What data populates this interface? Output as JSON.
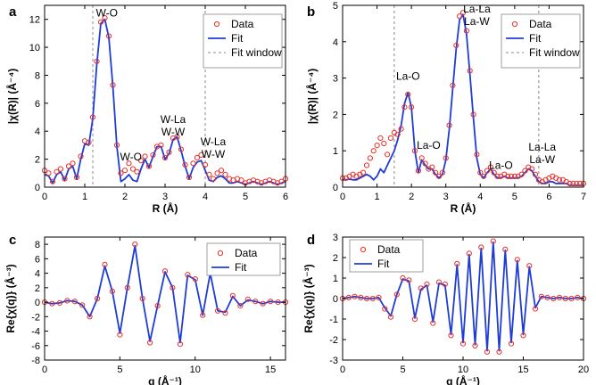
{
  "chart_data": [
    {
      "panel": "a",
      "type": "line",
      "xlabel": "R (Å)",
      "ylabel": "|χ(R)| (Å⁻⁴)",
      "xlim": [
        0,
        6
      ],
      "ylim": [
        0,
        13
      ],
      "xticks": [
        0,
        1,
        2,
        3,
        4,
        5,
        6
      ],
      "yticks": [
        0,
        2,
        4,
        6,
        8,
        10,
        12
      ],
      "legend": {
        "position": "top-right",
        "entries": [
          "Data",
          "Fit",
          "Fit window"
        ]
      },
      "fit_window": [
        1.2,
        4.0
      ],
      "annotations": [
        {
          "lines": [
            "W-O"
          ],
          "x": 1.55,
          "y": 12.2
        },
        {
          "lines": [
            "W-O"
          ],
          "x": 2.15,
          "y": 1.9
        },
        {
          "lines": [
            "W-La",
            "W-W"
          ],
          "x": 3.2,
          "y": 4.6
        },
        {
          "lines": [
            "W-La",
            "W-W"
          ],
          "x": 4.2,
          "y": 3.0
        }
      ],
      "series": [
        {
          "name": "Data",
          "style": "markers",
          "x": [
            0,
            0.1,
            0.2,
            0.3,
            0.4,
            0.5,
            0.6,
            0.7,
            0.8,
            0.9,
            1.0,
            1.1,
            1.2,
            1.3,
            1.4,
            1.5,
            1.6,
            1.7,
            1.8,
            1.9,
            2.0,
            2.1,
            2.2,
            2.3,
            2.4,
            2.5,
            2.6,
            2.7,
            2.8,
            2.9,
            3.0,
            3.1,
            3.2,
            3.3,
            3.4,
            3.5,
            3.6,
            3.7,
            3.8,
            3.9,
            4.0,
            4.1,
            4.2,
            4.3,
            4.4,
            4.5,
            4.6,
            4.7,
            4.8,
            4.9,
            5.0,
            5.1,
            5.2,
            5.3,
            5.4,
            5.5,
            5.6,
            5.7,
            5.8,
            5.9,
            6.0
          ],
          "y": [
            1.2,
            1.0,
            0.4,
            1.1,
            1.3,
            0.6,
            1.5,
            1.7,
            0.7,
            2.2,
            3.3,
            3.2,
            5.0,
            9.0,
            11.8,
            12.1,
            10.8,
            7.3,
            3.0,
            1.0,
            1.2,
            1.7,
            1.3,
            1.1,
            1.9,
            2.2,
            1.5,
            2.3,
            2.9,
            3.0,
            2.1,
            2.5,
            3.5,
            3.6,
            2.7,
            1.6,
            0.7,
            1.7,
            2.1,
            2.3,
            1.6,
            0.9,
            0.6,
            1.0,
            1.2,
            0.9,
            0.6,
            0.5,
            0.6,
            0.5,
            0.3,
            0.4,
            0.5,
            0.4,
            0.3,
            0.4,
            0.5,
            0.4,
            0.3,
            0.4,
            0.6
          ]
        },
        {
          "name": "Fit",
          "style": "line",
          "x": [
            0,
            0.1,
            0.2,
            0.3,
            0.4,
            0.5,
            0.6,
            0.7,
            0.8,
            0.9,
            1.0,
            1.1,
            1.2,
            1.3,
            1.4,
            1.5,
            1.6,
            1.7,
            1.8,
            1.9,
            2.0,
            2.1,
            2.2,
            2.3,
            2.4,
            2.5,
            2.6,
            2.7,
            2.8,
            2.9,
            3.0,
            3.1,
            3.2,
            3.3,
            3.4,
            3.5,
            3.6,
            3.7,
            3.8,
            3.9,
            4.0,
            4.1,
            4.2,
            4.3,
            4.4,
            4.5,
            4.6,
            4.7,
            4.8,
            4.9,
            5.0,
            5.1,
            5.2,
            5.3,
            5.4,
            5.5,
            5.6,
            5.7,
            5.8,
            5.9,
            6.0
          ],
          "y": [
            0.9,
            0.8,
            0.3,
            0.9,
            1.1,
            0.5,
            1.3,
            1.5,
            0.6,
            2.0,
            3.1,
            3.0,
            4.9,
            8.8,
            11.7,
            12.0,
            10.7,
            7.2,
            2.9,
            0.4,
            0.6,
            0.9,
            0.5,
            0.4,
            1.3,
            2.0,
            1.4,
            2.2,
            2.9,
            2.9,
            2.0,
            2.4,
            3.4,
            3.6,
            2.6,
            1.5,
            0.6,
            1.4,
            1.8,
            1.9,
            1.2,
            0.5,
            0.4,
            0.7,
            0.8,
            0.6,
            0.3,
            0.3,
            0.4,
            0.3,
            0.2,
            0.3,
            0.4,
            0.3,
            0.2,
            0.3,
            0.4,
            0.3,
            0.2,
            0.3,
            0.4
          ]
        }
      ]
    },
    {
      "panel": "b",
      "type": "line",
      "xlabel": "R (Å)",
      "ylabel": "|χ(R)| (Å⁻⁴)",
      "xlim": [
        0,
        7
      ],
      "ylim": [
        0,
        5
      ],
      "xticks": [
        0,
        1,
        2,
        3,
        4,
        5,
        6,
        7
      ],
      "yticks": [
        0,
        1,
        2,
        3,
        4,
        5
      ],
      "legend": {
        "position": "top-right",
        "entries": [
          "Data",
          "Fit",
          "Fit window"
        ]
      },
      "fit_window": [
        1.5,
        5.7
      ],
      "annotations": [
        {
          "lines": [
            "La-O"
          ],
          "x": 1.9,
          "y": 2.95
        },
        {
          "lines": [
            "La-O"
          ],
          "x": 2.5,
          "y": 1.05
        },
        {
          "lines": [
            "La-La",
            "La-W"
          ],
          "x": 3.9,
          "y": 4.8
        },
        {
          "lines": [
            "La-O"
          ],
          "x": 4.6,
          "y": 0.5
        },
        {
          "lines": [
            "La-La",
            "La-W"
          ],
          "x": 5.8,
          "y": 1.0
        }
      ],
      "series": [
        {
          "name": "Data",
          "style": "markers",
          "x": [
            0,
            0.1,
            0.2,
            0.3,
            0.4,
            0.5,
            0.6,
            0.7,
            0.8,
            0.9,
            1.0,
            1.1,
            1.2,
            1.3,
            1.4,
            1.5,
            1.6,
            1.7,
            1.8,
            1.9,
            2.0,
            2.1,
            2.2,
            2.3,
            2.4,
            2.5,
            2.6,
            2.7,
            2.8,
            2.9,
            3.0,
            3.1,
            3.2,
            3.3,
            3.4,
            3.5,
            3.6,
            3.7,
            3.8,
            3.9,
            4.0,
            4.1,
            4.2,
            4.3,
            4.4,
            4.5,
            4.6,
            4.7,
            4.8,
            4.9,
            5.0,
            5.1,
            5.2,
            5.3,
            5.4,
            5.5,
            5.6,
            5.7,
            5.8,
            5.9,
            6.0,
            6.1,
            6.2,
            6.3,
            6.4,
            6.5,
            6.6,
            6.7,
            6.8,
            6.9,
            7.0
          ],
          "y": [
            0.25,
            0.25,
            0.3,
            0.35,
            0.3,
            0.35,
            0.4,
            0.6,
            0.8,
            1.0,
            1.15,
            1.35,
            1.2,
            0.9,
            1.35,
            1.5,
            1.45,
            1.6,
            2.2,
            2.55,
            2.2,
            1.0,
            0.45,
            0.8,
            0.65,
            0.5,
            0.55,
            0.4,
            0.3,
            0.4,
            0.8,
            1.7,
            2.8,
            3.9,
            4.7,
            4.8,
            4.3,
            3.2,
            2.0,
            0.9,
            0.4,
            0.3,
            0.45,
            0.55,
            0.4,
            0.3,
            0.3,
            0.35,
            0.3,
            0.3,
            0.3,
            0.3,
            0.35,
            0.45,
            0.55,
            0.5,
            0.35,
            0.2,
            0.15,
            0.2,
            0.25,
            0.3,
            0.25,
            0.2,
            0.2,
            0.15,
            0.1,
            0.1,
            0.1,
            0.1,
            0.1
          ]
        },
        {
          "name": "Fit",
          "style": "line",
          "x": [
            0,
            0.1,
            0.2,
            0.3,
            0.4,
            0.5,
            0.6,
            0.7,
            0.8,
            0.9,
            1.0,
            1.1,
            1.2,
            1.3,
            1.4,
            1.5,
            1.6,
            1.7,
            1.8,
            1.9,
            2.0,
            2.1,
            2.2,
            2.3,
            2.4,
            2.5,
            2.6,
            2.7,
            2.8,
            2.9,
            3.0,
            3.1,
            3.2,
            3.3,
            3.4,
            3.5,
            3.6,
            3.7,
            3.8,
            3.9,
            4.0,
            4.1,
            4.2,
            4.3,
            4.4,
            4.5,
            4.6,
            4.7,
            4.8,
            4.9,
            5.0,
            5.1,
            5.2,
            5.3,
            5.4,
            5.5,
            5.6,
            5.7,
            5.8,
            5.9,
            6.0,
            6.1,
            6.2,
            6.3,
            6.4,
            6.5,
            6.6,
            6.7,
            6.8,
            6.9,
            7.0
          ],
          "y": [
            0.2,
            0.2,
            0.22,
            0.2,
            0.2,
            0.25,
            0.3,
            0.35,
            0.3,
            0.2,
            0.3,
            0.5,
            0.4,
            0.6,
            0.8,
            1.0,
            1.3,
            1.7,
            2.3,
            2.6,
            2.2,
            1.0,
            0.4,
            0.75,
            0.6,
            0.5,
            0.5,
            0.35,
            0.25,
            0.35,
            0.75,
            1.6,
            2.7,
            3.8,
            4.6,
            4.75,
            4.2,
            3.1,
            1.9,
            0.8,
            0.35,
            0.25,
            0.4,
            0.5,
            0.35,
            0.25,
            0.25,
            0.3,
            0.25,
            0.25,
            0.25,
            0.25,
            0.3,
            0.4,
            0.5,
            0.45,
            0.3,
            0.15,
            0.1,
            0.1,
            0.15,
            0.15,
            0.1,
            0.1,
            0.1,
            0.1,
            0.05,
            0.05,
            0.05,
            0.05,
            0.05
          ]
        }
      ]
    },
    {
      "panel": "c",
      "type": "line",
      "xlabel": "q (Å⁻¹)",
      "ylabel": "Re{χ(q)} (Å⁻³)",
      "xlim": [
        0,
        16
      ],
      "ylim": [
        -8,
        9
      ],
      "xticks": [
        0,
        5,
        10,
        15
      ],
      "yticks": [
        -8,
        -6,
        -4,
        -2,
        0,
        2,
        4,
        6,
        8
      ],
      "legend": {
        "position": "top-right",
        "entries": [
          "Data",
          "Fit"
        ]
      },
      "series": [
        {
          "name": "Data",
          "style": "markers",
          "x": [
            0,
            0.5,
            1.0,
            1.5,
            2.0,
            2.5,
            3.0,
            3.5,
            4.0,
            4.5,
            5.0,
            5.5,
            6.0,
            6.5,
            7.0,
            7.5,
            8.0,
            8.5,
            9.0,
            9.5,
            10.0,
            10.5,
            11.0,
            11.5,
            12.0,
            12.5,
            13.0,
            13.5,
            14.0,
            14.5,
            15.0,
            15.5,
            16.0
          ],
          "y": [
            0,
            -0.2,
            -0.1,
            0.2,
            0.1,
            -0.4,
            -2.0,
            0.5,
            5.2,
            1.5,
            -4.5,
            2.0,
            8.0,
            0.5,
            -5.6,
            -0.5,
            4.3,
            2.0,
            -5.8,
            3.8,
            3.2,
            -1.8,
            4.2,
            -1.2,
            -1.5,
            0.9,
            -0.5,
            0.4,
            0.1,
            -0.2,
            0.1,
            0.0,
            0.0
          ]
        },
        {
          "name": "Fit",
          "style": "line",
          "x": [
            0,
            0.5,
            1.0,
            1.5,
            2.0,
            2.5,
            3.0,
            3.5,
            4.0,
            4.5,
            5.0,
            5.5,
            6.0,
            6.5,
            7.0,
            7.5,
            8.0,
            8.5,
            9.0,
            9.5,
            10.0,
            10.5,
            11.0,
            11.5,
            12.0,
            12.5,
            13.0,
            13.5,
            14.0,
            14.5,
            15.0,
            15.5,
            16.0
          ],
          "y": [
            0,
            -0.2,
            -0.1,
            0.2,
            0.1,
            -0.4,
            -2.0,
            0.5,
            5.0,
            1.5,
            -4.3,
            2.0,
            7.8,
            0.5,
            -5.4,
            -0.5,
            4.2,
            2.0,
            -5.6,
            3.7,
            3.1,
            -1.8,
            4.0,
            -1.2,
            -1.4,
            0.8,
            -0.5,
            0.3,
            0.1,
            -0.2,
            0.1,
            0.0,
            0.0
          ]
        }
      ]
    },
    {
      "panel": "d",
      "type": "line",
      "xlabel": "q (Å⁻¹)",
      "ylabel": "Re{χ(q)} (Å⁻³)",
      "xlim": [
        0,
        20
      ],
      "ylim": [
        -3,
        3
      ],
      "xticks": [
        0,
        5,
        10,
        15,
        20
      ],
      "yticks": [
        -3,
        -2,
        -1,
        0,
        1,
        2,
        3
      ],
      "legend": {
        "position": "top-left",
        "entries": [
          "Data",
          "Fit"
        ]
      },
      "series": [
        {
          "name": "Data",
          "style": "markers",
          "x": [
            0,
            0.5,
            1.0,
            1.5,
            2.0,
            2.5,
            3.0,
            3.5,
            4.0,
            4.5,
            5.0,
            5.5,
            6.0,
            6.5,
            7.0,
            7.5,
            8.0,
            8.5,
            9.0,
            9.5,
            10.0,
            10.5,
            11.0,
            11.5,
            12.0,
            12.5,
            13.0,
            13.5,
            14.0,
            14.5,
            15.0,
            15.5,
            16.0,
            16.5,
            17.0,
            17.5,
            18.0,
            18.5,
            19.0,
            19.5,
            20.0
          ],
          "y": [
            0,
            0.05,
            0.1,
            0.05,
            0.0,
            0.0,
            0.05,
            -0.5,
            -0.9,
            0.2,
            1.0,
            0.9,
            -1.0,
            0.5,
            0.7,
            -1.2,
            0.8,
            0.7,
            -1.8,
            1.7,
            -2.2,
            2.2,
            -2.3,
            2.5,
            -2.6,
            2.8,
            -2.6,
            2.4,
            -2.2,
            1.9,
            -1.8,
            1.6,
            -0.5,
            0.1,
            0.05,
            0.0,
            0.05,
            0.0,
            0.0,
            0.05,
            0.0
          ]
        },
        {
          "name": "Fit",
          "style": "line",
          "x": [
            0,
            0.5,
            1.0,
            1.5,
            2.0,
            2.5,
            3.0,
            3.5,
            4.0,
            4.5,
            5.0,
            5.5,
            6.0,
            6.5,
            7.0,
            7.5,
            8.0,
            8.5,
            9.0,
            9.5,
            10.0,
            10.5,
            11.0,
            11.5,
            12.0,
            12.5,
            13.0,
            13.5,
            14.0,
            14.5,
            15.0,
            15.5,
            16.0,
            16.5,
            17.0,
            17.5,
            18.0,
            18.5,
            19.0,
            19.5,
            20.0
          ],
          "y": [
            0,
            0.05,
            0.1,
            0.05,
            0.0,
            0.0,
            0.05,
            -0.45,
            -0.85,
            0.2,
            0.95,
            0.85,
            -0.95,
            0.45,
            0.65,
            -1.15,
            0.75,
            0.65,
            -1.75,
            1.65,
            -2.15,
            2.15,
            -2.25,
            2.45,
            -2.55,
            2.75,
            -2.55,
            2.35,
            -2.15,
            1.85,
            -1.75,
            1.55,
            -0.45,
            0.1,
            0.05,
            0.0,
            0.05,
            0.0,
            0.0,
            0.05,
            0.0
          ]
        }
      ]
    }
  ]
}
